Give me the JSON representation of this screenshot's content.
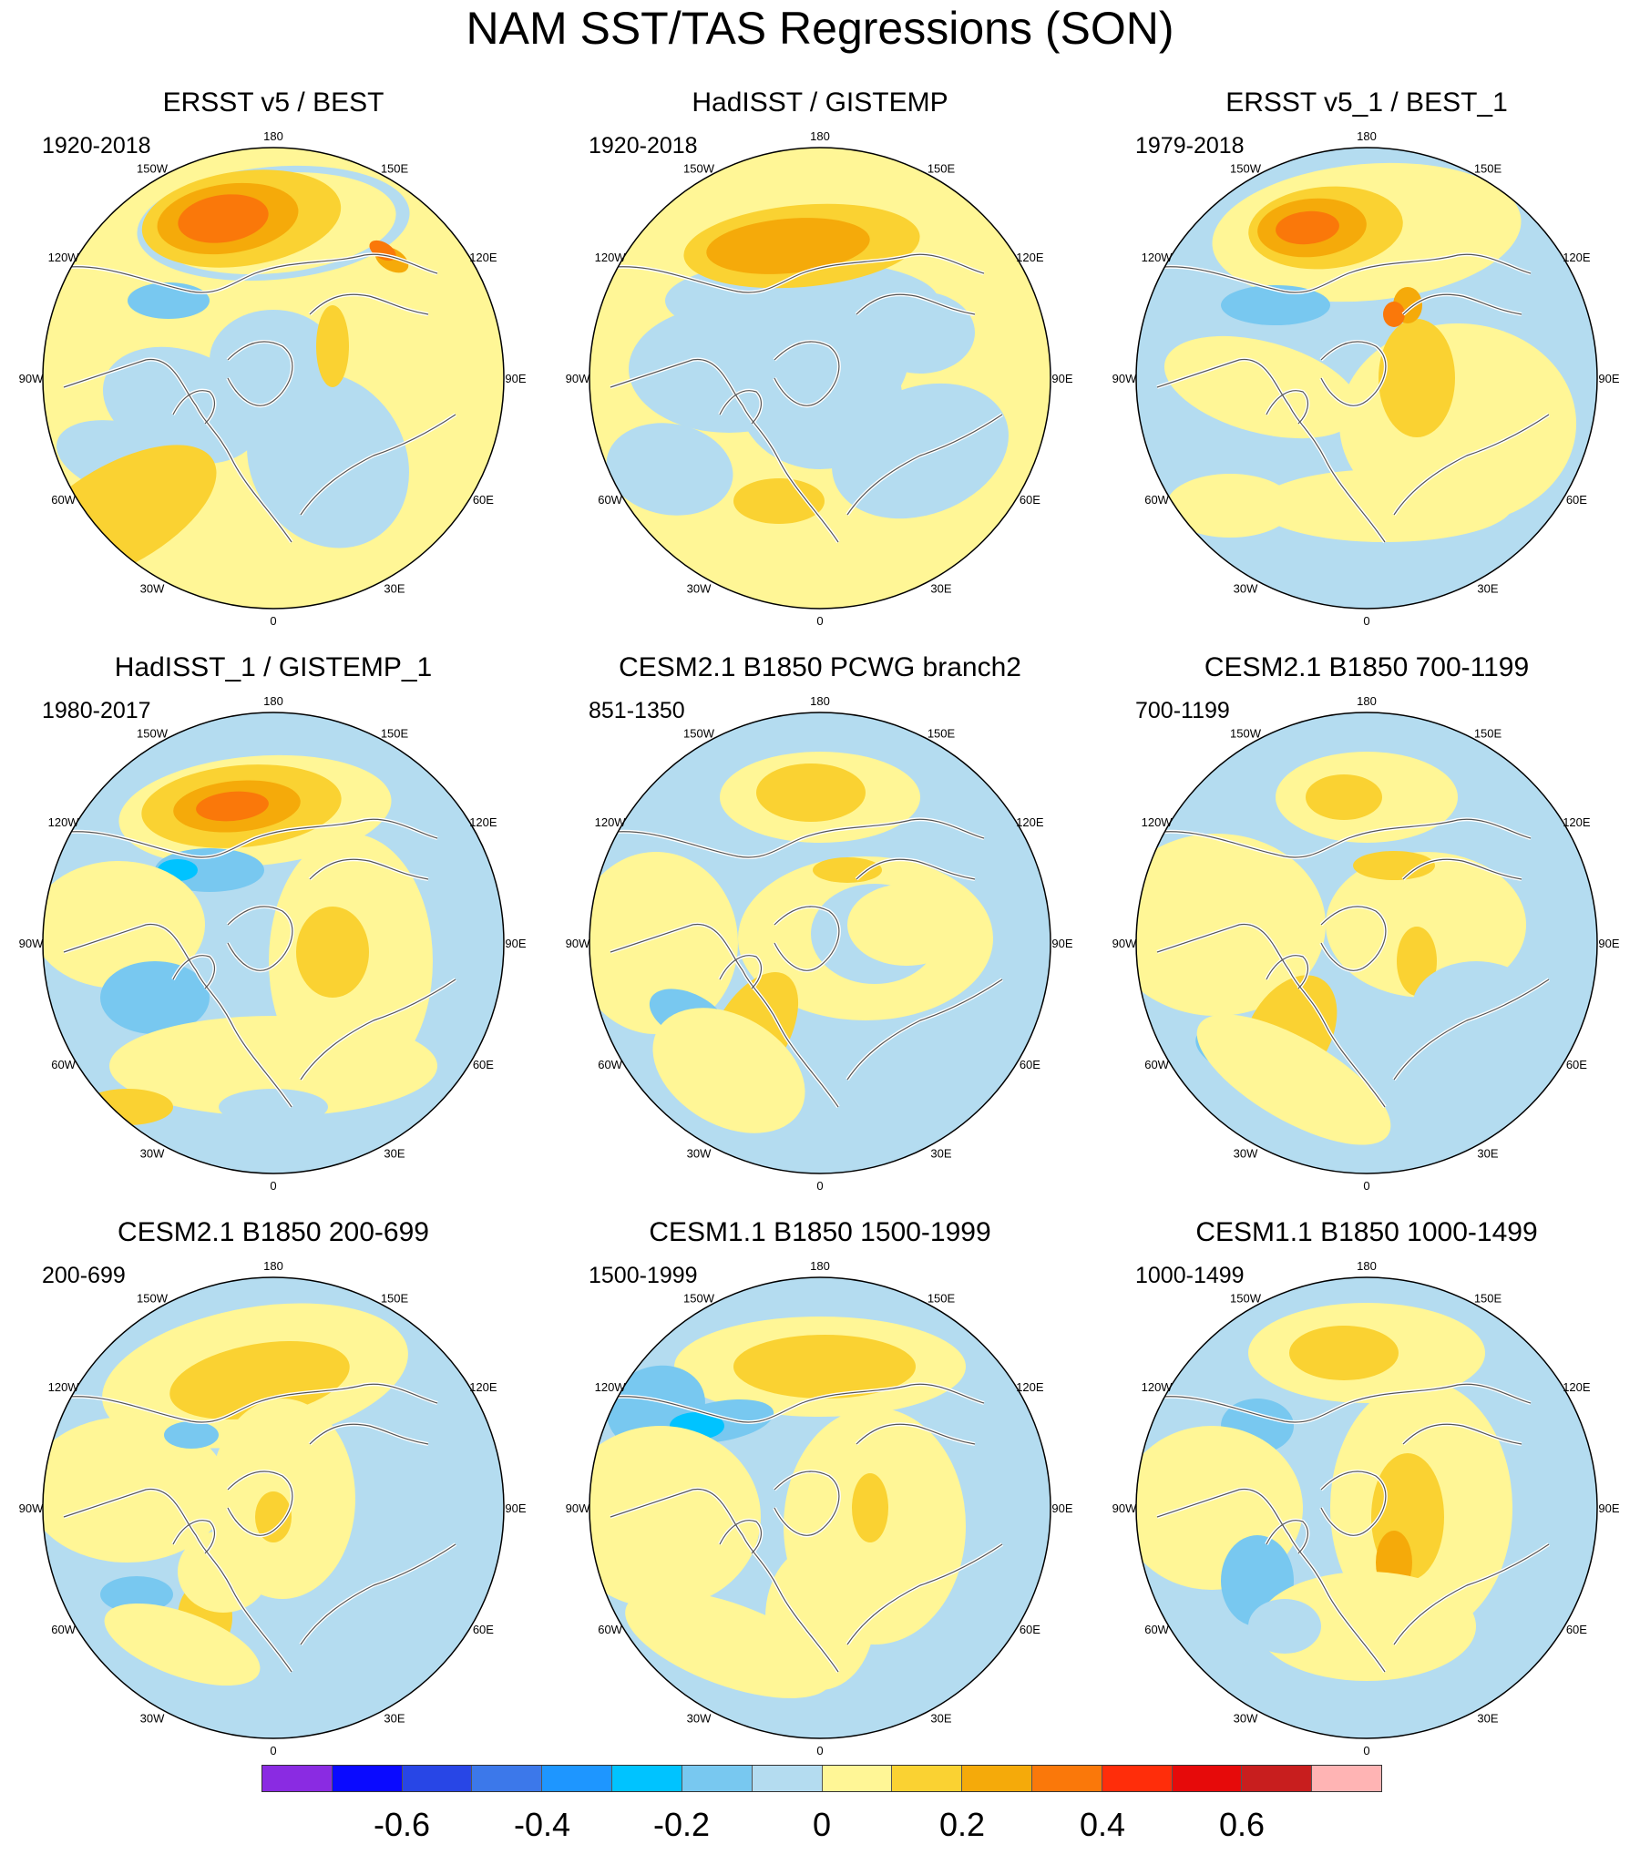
{
  "title": "NAM SST/TAS Regressions (SON)",
  "panels": [
    {
      "title": "ERSST v5 / BEST",
      "period": "1920-2018",
      "variant": 0
    },
    {
      "title": "HadISST / GISTEMP",
      "period": "1920-2018",
      "variant": 1
    },
    {
      "title": "ERSST v5_1 / BEST_1",
      "period": "1979-2018",
      "variant": 2
    },
    {
      "title": "HadISST_1 / GISTEMP_1",
      "period": "1980-2017",
      "variant": 3
    },
    {
      "title": "CESM2.1 B1850 PCWG branch2",
      "period": "851-1350",
      "variant": 4
    },
    {
      "title": "CESM2.1 B1850 700-1199",
      "period": "700-1199",
      "variant": 5
    },
    {
      "title": "CESM2.1 B1850 200-699",
      "period": "200-699",
      "variant": 6
    },
    {
      "title": "CESM1.1 B1850 1500-1999",
      "period": "1500-1999",
      "variant": 7
    },
    {
      "title": "CESM1.1 B1850 1000-1499",
      "period": "1000-1499",
      "variant": 8
    }
  ],
  "longitude_labels": [
    "180",
    "150E",
    "120E",
    "90E",
    "60E",
    "30E",
    "0",
    "30W",
    "60W",
    "90W",
    "120W",
    "150W"
  ],
  "colorbar": {
    "colors": [
      "#8a2be2",
      "#0a0aff",
      "#2846e6",
      "#3c78ea",
      "#1e96ff",
      "#00c3ff",
      "#78c8f0",
      "#b4dcf0",
      "#fff696",
      "#fad232",
      "#f5aa0a",
      "#fa780a",
      "#ff2d0a",
      "#e60a0a",
      "#c81e1e",
      "#ffb4b4"
    ],
    "tick_labels": [
      "-0.6",
      "-0.4",
      "-0.2",
      "0",
      "0.2",
      "0.4",
      "0.6"
    ],
    "tick_values": [
      -0.6,
      -0.4,
      -0.2,
      0,
      0.2,
      0.4,
      0.6
    ]
  }
}
